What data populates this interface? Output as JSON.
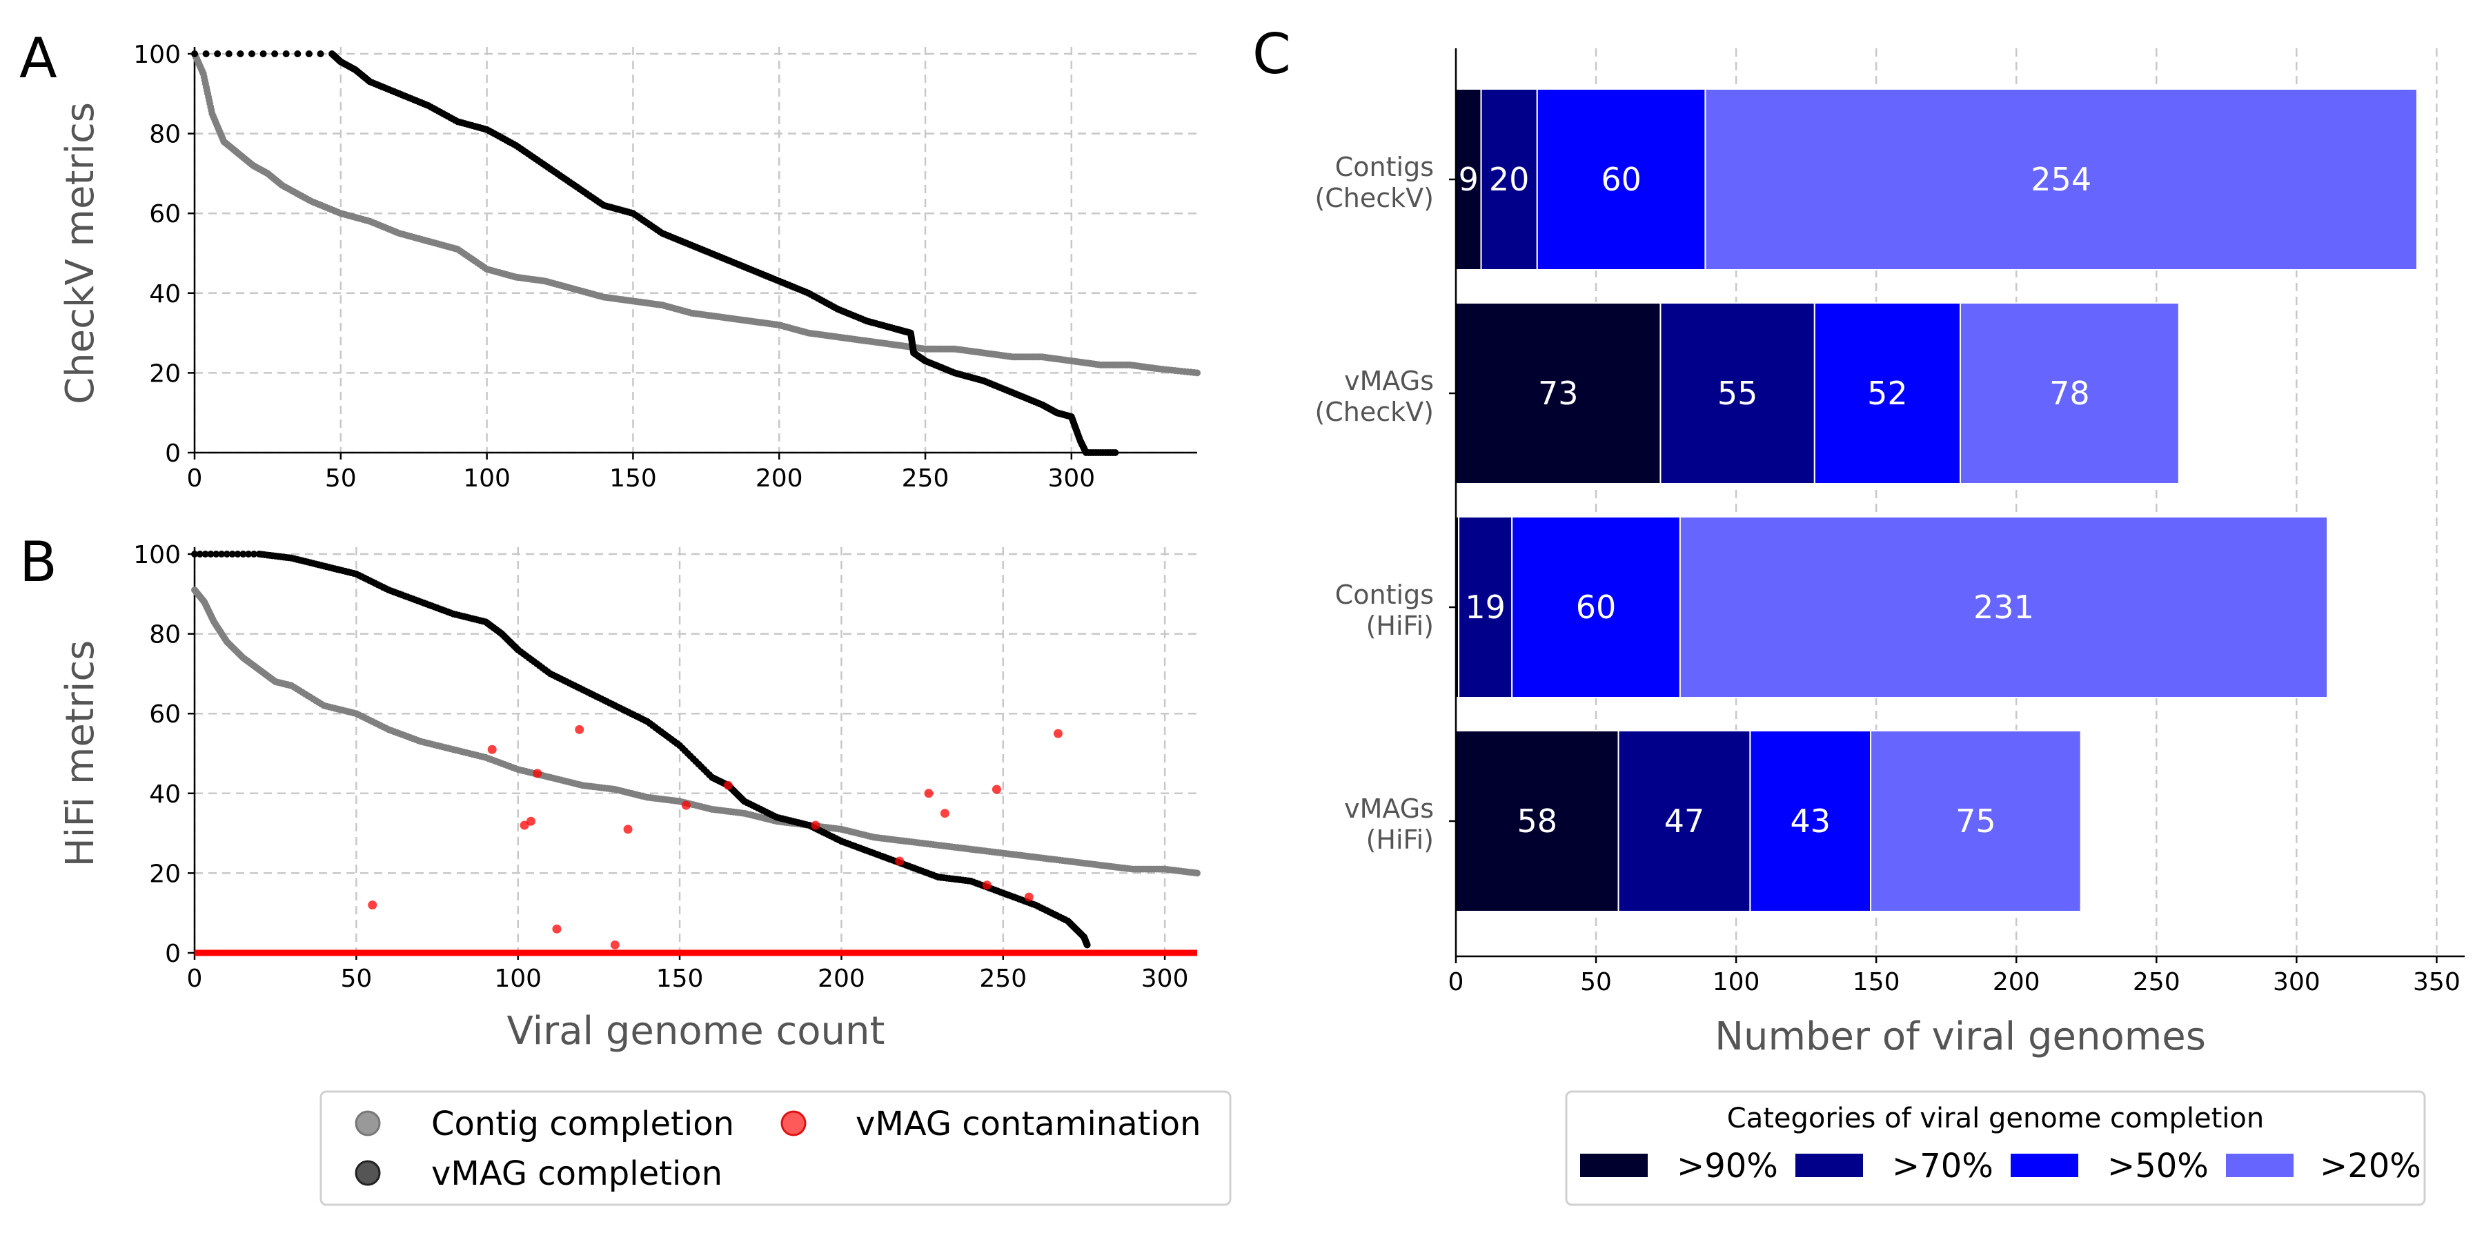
{
  "figure": {
    "panel_a_label": "A",
    "panel_b_label": "B",
    "panel_c_label": "C"
  },
  "colors": {
    "contig": "#808080",
    "vmag": "#000000",
    "contamination": "#ff0000",
    "cat_90": "#00002e",
    "cat_70": "#00008b",
    "cat_50": "#0000ff",
    "cat_20": "#6666ff",
    "grid": "#c8c8c8"
  },
  "legend_left": {
    "items": [
      {
        "label": "Contig completion",
        "color": "#999999"
      },
      {
        "label": "vMAG contamination",
        "color": "#ff3333"
      },
      {
        "label": "vMAG completion",
        "color": "#333333"
      }
    ]
  },
  "legend_right": {
    "title": "Categories of viral genome completion",
    "items": [
      {
        "label": ">90%",
        "color": "#00002e"
      },
      {
        "label": ">70%",
        "color": "#00008b"
      },
      {
        "label": ">50%",
        "color": "#0000ff"
      },
      {
        "label": ">20%",
        "color": "#6666ff"
      }
    ]
  },
  "chart_data": [
    {
      "panel": "A",
      "type": "scatter",
      "ylabel": "CheckV metrics",
      "xlabel": "",
      "xlim": [
        0,
        343
      ],
      "ylim": [
        0,
        100
      ],
      "xticks": [
        0,
        50,
        100,
        150,
        200,
        250,
        300
      ],
      "yticks": [
        0,
        20,
        40,
        60,
        80,
        100
      ],
      "grid": true,
      "series": [
        {
          "name": "Contig completion",
          "color": "#808080",
          "points": [
            [
              0,
              100
            ],
            [
              3,
              95
            ],
            [
              6,
              85
            ],
            [
              10,
              78
            ],
            [
              15,
              75
            ],
            [
              20,
              72
            ],
            [
              25,
              70
            ],
            [
              30,
              67
            ],
            [
              40,
              63
            ],
            [
              50,
              60
            ],
            [
              60,
              58
            ],
            [
              70,
              55
            ],
            [
              80,
              53
            ],
            [
              90,
              51
            ],
            [
              100,
              46
            ],
            [
              110,
              44
            ],
            [
              120,
              43
            ],
            [
              130,
              41
            ],
            [
              140,
              39
            ],
            [
              150,
              38
            ],
            [
              160,
              37
            ],
            [
              170,
              35
            ],
            [
              180,
              34
            ],
            [
              190,
              33
            ],
            [
              200,
              32
            ],
            [
              210,
              30
            ],
            [
              220,
              29
            ],
            [
              230,
              28
            ],
            [
              240,
              27
            ],
            [
              250,
              26
            ],
            [
              260,
              26
            ],
            [
              270,
              25
            ],
            [
              280,
              24
            ],
            [
              290,
              24
            ],
            [
              300,
              23
            ],
            [
              310,
              22
            ],
            [
              320,
              22
            ],
            [
              330,
              21
            ],
            [
              343,
              20
            ]
          ]
        },
        {
          "name": "vMAG completion",
          "color": "#000000",
          "points": [
            [
              0,
              100
            ],
            [
              47,
              100
            ],
            [
              50,
              98
            ],
            [
              55,
              96
            ],
            [
              60,
              93
            ],
            [
              70,
              90
            ],
            [
              80,
              87
            ],
            [
              90,
              83
            ],
            [
              100,
              81
            ],
            [
              110,
              77
            ],
            [
              120,
              72
            ],
            [
              130,
              67
            ],
            [
              140,
              62
            ],
            [
              150,
              60
            ],
            [
              160,
              55
            ],
            [
              170,
              52
            ],
            [
              180,
              49
            ],
            [
              190,
              46
            ],
            [
              200,
              43
            ],
            [
              210,
              40
            ],
            [
              220,
              36
            ],
            [
              230,
              33
            ],
            [
              240,
              31
            ],
            [
              245,
              30
            ],
            [
              246,
              25
            ],
            [
              250,
              23
            ],
            [
              260,
              20
            ],
            [
              270,
              18
            ],
            [
              280,
              15
            ],
            [
              290,
              12
            ],
            [
              295,
              10
            ],
            [
              300,
              9
            ],
            [
              303,
              3
            ],
            [
              305,
              0
            ],
            [
              315,
              0
            ]
          ]
        }
      ]
    },
    {
      "panel": "B",
      "type": "scatter",
      "ylabel": "HiFi metrics",
      "xlabel": "Viral genome count",
      "xlim": [
        0,
        310
      ],
      "ylim": [
        0,
        100
      ],
      "xticks": [
        0,
        50,
        100,
        150,
        200,
        250,
        300
      ],
      "yticks": [
        0,
        20,
        40,
        60,
        80,
        100
      ],
      "grid": true,
      "series": [
        {
          "name": "Contig completion",
          "color": "#808080",
          "points": [
            [
              0,
              91
            ],
            [
              3,
              88
            ],
            [
              6,
              83
            ],
            [
              10,
              78
            ],
            [
              15,
              74
            ],
            [
              20,
              71
            ],
            [
              25,
              68
            ],
            [
              30,
              67
            ],
            [
              40,
              62
            ],
            [
              50,
              60
            ],
            [
              60,
              56
            ],
            [
              70,
              53
            ],
            [
              80,
              51
            ],
            [
              90,
              49
            ],
            [
              100,
              46
            ],
            [
              110,
              44
            ],
            [
              120,
              42
            ],
            [
              130,
              41
            ],
            [
              140,
              39
            ],
            [
              150,
              38
            ],
            [
              160,
              36
            ],
            [
              170,
              35
            ],
            [
              180,
              33
            ],
            [
              190,
              32
            ],
            [
              200,
              31
            ],
            [
              210,
              29
            ],
            [
              220,
              28
            ],
            [
              230,
              27
            ],
            [
              240,
              26
            ],
            [
              250,
              25
            ],
            [
              260,
              24
            ],
            [
              270,
              23
            ],
            [
              280,
              22
            ],
            [
              290,
              21
            ],
            [
              300,
              21
            ],
            [
              310,
              20
            ]
          ]
        },
        {
          "name": "vMAG completion",
          "color": "#000000",
          "points": [
            [
              0,
              100
            ],
            [
              20,
              100
            ],
            [
              30,
              99
            ],
            [
              40,
              97
            ],
            [
              50,
              95
            ],
            [
              60,
              91
            ],
            [
              70,
              88
            ],
            [
              80,
              85
            ],
            [
              90,
              83
            ],
            [
              95,
              80
            ],
            [
              100,
              76
            ],
            [
              110,
              70
            ],
            [
              120,
              66
            ],
            [
              130,
              62
            ],
            [
              140,
              58
            ],
            [
              150,
              52
            ],
            [
              160,
              44
            ],
            [
              165,
              42
            ],
            [
              170,
              38
            ],
            [
              180,
              34
            ],
            [
              190,
              32
            ],
            [
              200,
              28
            ],
            [
              210,
              25
            ],
            [
              220,
              22
            ],
            [
              230,
              19
            ],
            [
              240,
              18
            ],
            [
              250,
              15
            ],
            [
              260,
              12
            ],
            [
              270,
              8
            ],
            [
              275,
              4
            ],
            [
              276,
              2
            ]
          ]
        },
        {
          "name": "vMAG contamination",
          "color": "#ff0000",
          "baseline": [
            [
              0,
              0
            ],
            [
              310,
              0
            ]
          ],
          "points": [
            [
              55,
              12
            ],
            [
              92,
              51
            ],
            [
              102,
              32
            ],
            [
              104,
              33
            ],
            [
              106,
              45
            ],
            [
              112,
              6
            ],
            [
              119,
              56
            ],
            [
              130,
              2
            ],
            [
              134,
              31
            ],
            [
              152,
              37
            ],
            [
              165,
              42
            ],
            [
              192,
              32
            ],
            [
              218,
              23
            ],
            [
              227,
              40
            ],
            [
              232,
              35
            ],
            [
              245,
              17
            ],
            [
              248,
              41
            ],
            [
              258,
              14
            ],
            [
              267,
              55
            ]
          ]
        }
      ]
    },
    {
      "panel": "C",
      "type": "bar",
      "orientation": "horizontal",
      "stacked": true,
      "xlabel": "Number of viral genomes",
      "xlim": [
        0,
        360
      ],
      "xticks": [
        0,
        50,
        100,
        150,
        200,
        250,
        300,
        350
      ],
      "grid": true,
      "categories": [
        "Contigs\n(CheckV)",
        "vMAGs\n(CheckV)",
        "Contigs\n(HiFi)",
        "vMAGs\n(HiFi)"
      ],
      "series": [
        {
          "name": ">90%",
          "color": "#00002e",
          "values": [
            9,
            73,
            1,
            58
          ],
          "labels": [
            "9",
            "73",
            "",
            "58"
          ]
        },
        {
          "name": ">70%",
          "color": "#00008b",
          "values": [
            20,
            55,
            19,
            47
          ],
          "labels": [
            "20",
            "55",
            "19",
            "47"
          ]
        },
        {
          "name": ">50%",
          "color": "#0000ff",
          "values": [
            60,
            52,
            60,
            43
          ],
          "labels": [
            "60",
            "52",
            "60",
            "43"
          ]
        },
        {
          "name": ">20%",
          "color": "#6666ff",
          "values": [
            254,
            78,
            231,
            75
          ],
          "labels": [
            "254",
            "78",
            "231",
            "75"
          ]
        }
      ]
    }
  ]
}
